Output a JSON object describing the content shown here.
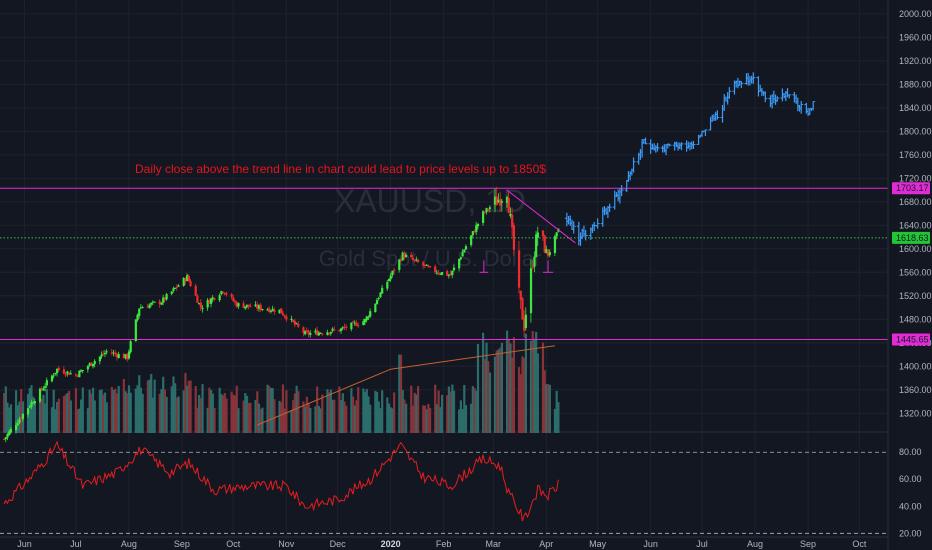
{
  "watermark": {
    "symbol": "XAUUSD, 1D",
    "description": "Gold Spot / U.S. Dollar"
  },
  "annotation": "Daily close above the trend line in chart could lead to price levels up to 1850$",
  "colors": {
    "background": "#131722",
    "up": "#26a69a",
    "up_bright": "#3ee83e",
    "down": "#ef2b2b",
    "projection": "#3d9bf5",
    "hline": "#e22bd6",
    "mid_line": "#3ac24a",
    "rsi": "#e81d1d",
    "volume_up": "#2b6d6a",
    "volume_down": "#86343a",
    "volume_ma": "#c4612e",
    "grid": "#1e222d"
  },
  "chart_data": [
    {
      "type": "candlestick",
      "title": "XAUUSD, 1D",
      "ylim": [
        1300,
        2010
      ],
      "y_ticks": [
        "2000.00",
        "1960.00",
        "1920.00",
        "1880.00",
        "1840.00",
        "1800.00",
        "1760.00",
        "1720.00",
        "1680.00",
        "1640.00",
        "1600.00",
        "1560.00",
        "1520.00",
        "1480.00",
        "1440.00",
        "1400.00",
        "1360.00",
        "1320.00"
      ],
      "x_ticks": [
        "Jun",
        "Jul",
        "Aug",
        "Sep",
        "Oct",
        "Nov",
        "Dec",
        "2020",
        "Feb",
        "Mar",
        "Apr",
        "May",
        "Jun",
        "Jul",
        "Aug",
        "Sep",
        "Oct"
      ],
      "horizontal_levels": [
        {
          "label": "1703.17",
          "value": 1703.17,
          "style": "solid",
          "color": "#e22bd6"
        },
        {
          "label": "1618.63",
          "value": 1618.63,
          "style": "dotted",
          "color": "#3ac24a"
        },
        {
          "label": "1445.65",
          "value": 1445.65,
          "style": "solid",
          "color": "#e22bd6"
        }
      ],
      "price_anchors": [
        {
          "date": "2019-05-20",
          "close": 1276
        },
        {
          "date": "2019-06-03",
          "close": 1330
        },
        {
          "date": "2019-06-20",
          "close": 1395
        },
        {
          "date": "2019-07-01",
          "close": 1385
        },
        {
          "date": "2019-07-19",
          "close": 1425
        },
        {
          "date": "2019-07-31",
          "close": 1415
        },
        {
          "date": "2019-08-07",
          "close": 1500
        },
        {
          "date": "2019-08-20",
          "close": 1510
        },
        {
          "date": "2019-09-04",
          "close": 1552
        },
        {
          "date": "2019-09-12",
          "close": 1500
        },
        {
          "date": "2019-09-25",
          "close": 1530
        },
        {
          "date": "2019-10-03",
          "close": 1505
        },
        {
          "date": "2019-10-28",
          "close": 1495
        },
        {
          "date": "2019-11-12",
          "close": 1455
        },
        {
          "date": "2019-12-02",
          "close": 1462
        },
        {
          "date": "2019-12-17",
          "close": 1478
        },
        {
          "date": "2020-01-08",
          "close": 1590
        },
        {
          "date": "2020-01-24",
          "close": 1565
        },
        {
          "date": "2020-02-05",
          "close": 1555
        },
        {
          "date": "2020-02-24",
          "close": 1660
        },
        {
          "date": "2020-03-06",
          "close": 1690
        },
        {
          "date": "2020-03-09",
          "close": 1700
        },
        {
          "date": "2020-03-16",
          "close": 1520
        },
        {
          "date": "2020-03-19",
          "close": 1470
        },
        {
          "date": "2020-03-24",
          "close": 1580
        },
        {
          "date": "2020-03-27",
          "close": 1630
        },
        {
          "date": "2020-04-02",
          "close": 1590
        },
        {
          "date": "2020-04-08",
          "close": 1630
        }
      ],
      "projection_anchors": [
        {
          "date": "2020-04-13",
          "close": 1652
        },
        {
          "date": "2020-04-20",
          "close": 1620
        },
        {
          "date": "2020-04-29",
          "close": 1640
        },
        {
          "date": "2020-05-15",
          "close": 1700
        },
        {
          "date": "2020-05-28",
          "close": 1780
        },
        {
          "date": "2020-06-08",
          "close": 1770
        },
        {
          "date": "2020-06-25",
          "close": 1780
        },
        {
          "date": "2020-07-10",
          "close": 1830
        },
        {
          "date": "2020-07-20",
          "close": 1880
        },
        {
          "date": "2020-07-30",
          "close": 1890
        },
        {
          "date": "2020-08-08",
          "close": 1850
        },
        {
          "date": "2020-08-20",
          "close": 1865
        },
        {
          "date": "2020-08-31",
          "close": 1830
        },
        {
          "date": "2020-09-06",
          "close": 1855
        }
      ],
      "volume_ma_points": [
        {
          "date": "2019-10-15",
          "value": 1300
        },
        {
          "date": "2020-01-01",
          "value": 1395
        },
        {
          "date": "2020-04-06",
          "value": 1435
        }
      ],
      "volume_range": [
        1300,
        1470
      ]
    },
    {
      "type": "line",
      "title": "RSI",
      "ylim": [
        18,
        92
      ],
      "y_ticks": [
        "80.00",
        "60.00",
        "40.00",
        "20.00"
      ],
      "bands": [
        80,
        20
      ],
      "points": [
        {
          "date": "2019-05-20",
          "value": 42
        },
        {
          "date": "2019-06-05",
          "value": 62
        },
        {
          "date": "2019-06-20",
          "value": 85
        },
        {
          "date": "2019-07-05",
          "value": 55
        },
        {
          "date": "2019-07-25",
          "value": 65
        },
        {
          "date": "2019-08-08",
          "value": 82
        },
        {
          "date": "2019-08-25",
          "value": 65
        },
        {
          "date": "2019-09-05",
          "value": 72
        },
        {
          "date": "2019-09-20",
          "value": 52
        },
        {
          "date": "2019-10-10",
          "value": 55
        },
        {
          "date": "2019-11-01",
          "value": 55
        },
        {
          "date": "2019-11-12",
          "value": 40
        },
        {
          "date": "2019-12-01",
          "value": 45
        },
        {
          "date": "2019-12-20",
          "value": 60
        },
        {
          "date": "2020-01-07",
          "value": 85
        },
        {
          "date": "2020-01-20",
          "value": 62
        },
        {
          "date": "2020-02-05",
          "value": 55
        },
        {
          "date": "2020-02-24",
          "value": 75
        },
        {
          "date": "2020-03-05",
          "value": 70
        },
        {
          "date": "2020-03-10",
          "value": 50
        },
        {
          "date": "2020-03-19",
          "value": 30
        },
        {
          "date": "2020-03-27",
          "value": 52
        },
        {
          "date": "2020-04-02",
          "value": 48
        },
        {
          "date": "2020-04-08",
          "value": 56
        }
      ]
    }
  ]
}
